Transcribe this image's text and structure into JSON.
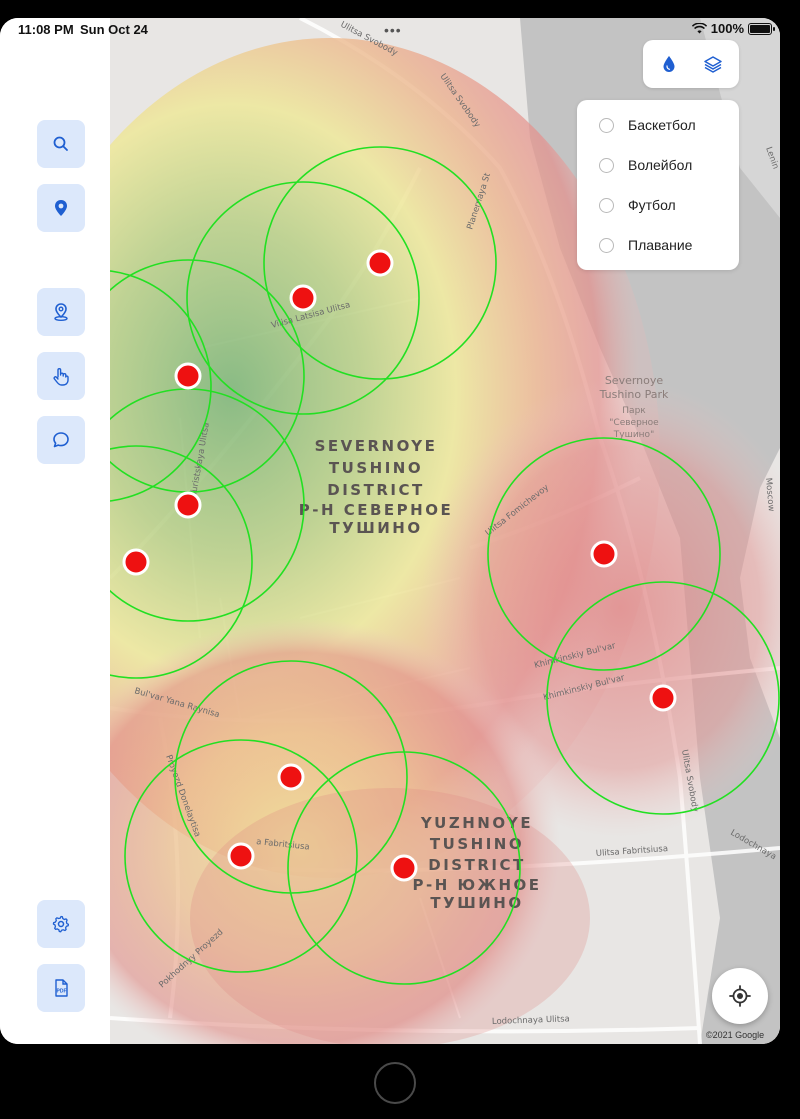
{
  "status_bar": {
    "time": "11:08 PM",
    "date": "Sun Oct 24",
    "battery": "100%"
  },
  "sidebar": {
    "top_buttons": [
      {
        "icon": "search-icon"
      },
      {
        "icon": "pin-icon"
      }
    ],
    "middle_buttons": [
      {
        "icon": "location-marker-icon"
      },
      {
        "icon": "hand-pointer-icon"
      },
      {
        "icon": "chat-bubble-icon"
      }
    ],
    "bottom_buttons": [
      {
        "icon": "gear-icon"
      },
      {
        "icon": "pdf-icon",
        "label": "PDF"
      }
    ]
  },
  "top_tools": [
    {
      "icon": "water-drop-icon"
    },
    {
      "icon": "layers-icon"
    }
  ],
  "filters": [
    {
      "label": "Баскетбол",
      "selected": false
    },
    {
      "label": "Волейбол",
      "selected": false
    },
    {
      "label": "Футбол",
      "selected": false
    },
    {
      "label": "Плавание",
      "selected": false
    }
  ],
  "map": {
    "districts": [
      {
        "lines": [
          "SEVERNOYE",
          "TUSHINO",
          "DISTRICT",
          "Р-Н СЕВЕРНОЕ",
          "ТУШИНО"
        ]
      },
      {
        "lines": [
          "YUZHNOYE",
          "TUSHINO",
          "DISTRICT",
          "Р-Н ЮЖНОЕ",
          "ТУШИНО"
        ]
      }
    ],
    "park": {
      "lines": [
        "Severnoye",
        "Tushino Park",
        "Парк",
        "\"Северное",
        "Тушино\""
      ]
    },
    "streets": {
      "ulitsa_svobody_top": "Ulitsa Svobody",
      "ulitsa_svobody_top2": "Ulitsa Svobody",
      "planernaya": "Planernaya St",
      "vilisa_latsisa": "Vilisa Latsisa Ulitsa",
      "turistskaya": "Turistskaya Ulitsa",
      "fomichevoy": "Ulitsa Fomichevoy",
      "khimkinskiy1": "Khimkinskiy Bul'var",
      "khimkinskiy2": "Khimkinskiy Bul'var",
      "yana_raynisa": "Bul'var Yana Raynisa",
      "doneloytisa": "Proyezd Donelaytisa",
      "fabritsiusa_left": "a Fabritsiusa",
      "fabritsiusa_right": "Ulitsa Fabritsiusa",
      "svobody_right": "Ulitsa Svobody",
      "pokhodnyy": "Pokhodnyy Proyezd",
      "lodochnaya": "Lodochnaya Ulitsa",
      "lodochnaya_right": "Lodochnaya",
      "lenin_partial": "Lenin",
      "moscow_partial": "Moscow"
    },
    "copyright": "©2021 Google"
  },
  "colors": {
    "accent": "#1f5fd1",
    "button_bg": "#dce8fb",
    "marker": "#ee1111",
    "zone_circle": "#22e022"
  }
}
